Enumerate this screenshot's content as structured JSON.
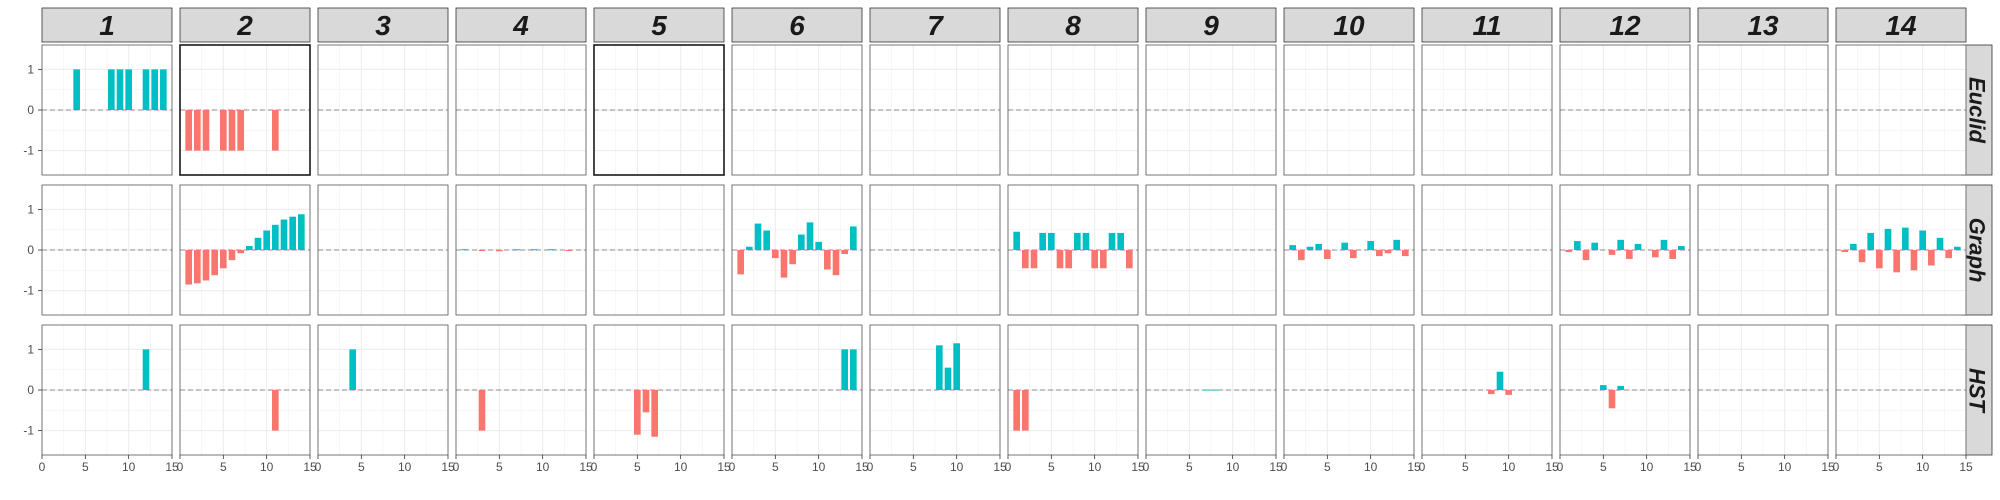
{
  "chart_data": {
    "type": "bar",
    "layout": "facet-grid",
    "columns": [
      "1",
      "2",
      "3",
      "4",
      "5",
      "6",
      "7",
      "8",
      "9",
      "10",
      "11",
      "12",
      "13",
      "14"
    ],
    "rows": [
      "Euclid",
      "Graph",
      "HST"
    ],
    "x_ticks": [
      "0",
      "5",
      "10",
      "15"
    ],
    "y_ticks": [
      "1",
      "0",
      "-1"
    ],
    "xlim": [
      0,
      15
    ],
    "ylim": [
      -1.6,
      1.6
    ],
    "grid": true,
    "zero_line": "dashed",
    "colors": {
      "positive": "#00BFC4",
      "negative": "#F8766D"
    },
    "highlighted_panels": [
      {
        "row": "Euclid",
        "col": "2"
      },
      {
        "row": "Euclid",
        "col": "5"
      }
    ],
    "panels": {
      "Euclid": {
        "1": [
          [
            4,
            1
          ],
          [
            8,
            1
          ],
          [
            9,
            1
          ],
          [
            10,
            1
          ],
          [
            12,
            1
          ],
          [
            13,
            1
          ],
          [
            14,
            1
          ]
        ],
        "2": [
          [
            1,
            -1
          ],
          [
            2,
            -1
          ],
          [
            3,
            -1
          ],
          [
            5,
            -1
          ],
          [
            6,
            -1
          ],
          [
            7,
            -1
          ],
          [
            11,
            -1
          ]
        ],
        "3": [],
        "4": [],
        "5": [],
        "6": [],
        "7": [],
        "8": [],
        "9": [],
        "10": [],
        "11": [],
        "12": [],
        "13": [],
        "14": []
      },
      "Graph": {
        "1": [],
        "2": [
          [
            1,
            -0.85
          ],
          [
            2,
            -0.82
          ],
          [
            3,
            -0.75
          ],
          [
            4,
            -0.62
          ],
          [
            5,
            -0.45
          ],
          [
            6,
            -0.25
          ],
          [
            7,
            -0.08
          ],
          [
            8,
            0.1
          ],
          [
            9,
            0.3
          ],
          [
            10,
            0.48
          ],
          [
            11,
            0.62
          ],
          [
            12,
            0.75
          ],
          [
            13,
            0.82
          ],
          [
            14,
            0.88
          ]
        ],
        "3": [],
        "4": [
          [
            1,
            0.02
          ],
          [
            3,
            -0.02
          ],
          [
            5,
            -0.03
          ],
          [
            7,
            0.02
          ],
          [
            9,
            0.02
          ],
          [
            11,
            0.02
          ],
          [
            13,
            -0.02
          ]
        ],
        "5": [],
        "6": [
          [
            1,
            -0.6
          ],
          [
            2,
            0.08
          ],
          [
            3,
            0.65
          ],
          [
            4,
            0.48
          ],
          [
            5,
            -0.2
          ],
          [
            6,
            -0.68
          ],
          [
            7,
            -0.35
          ],
          [
            8,
            0.38
          ],
          [
            9,
            0.68
          ],
          [
            10,
            0.2
          ],
          [
            11,
            -0.48
          ],
          [
            12,
            -0.62
          ],
          [
            13,
            -0.1
          ],
          [
            14,
            0.58
          ]
        ],
        "7": [],
        "8": [
          [
            1,
            0.45
          ],
          [
            2,
            -0.45
          ],
          [
            3,
            -0.45
          ],
          [
            4,
            0.42
          ],
          [
            5,
            0.42
          ],
          [
            6,
            -0.45
          ],
          [
            7,
            -0.45
          ],
          [
            8,
            0.42
          ],
          [
            9,
            0.42
          ],
          [
            10,
            -0.45
          ],
          [
            11,
            -0.45
          ],
          [
            12,
            0.42
          ],
          [
            13,
            0.42
          ],
          [
            14,
            -0.45
          ]
        ],
        "9": [],
        "10": [
          [
            1,
            0.12
          ],
          [
            2,
            -0.25
          ],
          [
            3,
            0.08
          ],
          [
            4,
            0.15
          ],
          [
            5,
            -0.22
          ],
          [
            7,
            0.18
          ],
          [
            8,
            -0.2
          ],
          [
            10,
            0.22
          ],
          [
            11,
            -0.15
          ],
          [
            12,
            -0.08
          ],
          [
            13,
            0.25
          ],
          [
            14,
            -0.15
          ]
        ],
        "11": [],
        "12": [
          [
            1,
            -0.05
          ],
          [
            2,
            0.22
          ],
          [
            3,
            -0.25
          ],
          [
            4,
            0.18
          ],
          [
            6,
            -0.12
          ],
          [
            7,
            0.25
          ],
          [
            8,
            -0.22
          ],
          [
            9,
            0.15
          ],
          [
            11,
            -0.18
          ],
          [
            12,
            0.25
          ],
          [
            13,
            -0.22
          ],
          [
            14,
            0.1
          ]
        ],
        "13": [],
        "14": [
          [
            1,
            -0.05
          ],
          [
            2,
            0.15
          ],
          [
            3,
            -0.3
          ],
          [
            4,
            0.42
          ],
          [
            5,
            -0.45
          ],
          [
            6,
            0.52
          ],
          [
            7,
            -0.55
          ],
          [
            8,
            0.55
          ],
          [
            9,
            -0.5
          ],
          [
            10,
            0.48
          ],
          [
            11,
            -0.38
          ],
          [
            12,
            0.3
          ],
          [
            13,
            -0.2
          ],
          [
            14,
            0.08
          ]
        ]
      },
      "HST": {
        "1": [
          [
            12,
            1
          ]
        ],
        "2": [
          [
            11,
            -1
          ]
        ],
        "3": [
          [
            4,
            1
          ]
        ],
        "4": [
          [
            3,
            -1
          ]
        ],
        "5": [
          [
            5,
            -1.1
          ],
          [
            6,
            -0.55
          ],
          [
            7,
            -1.15
          ]
        ],
        "6": [
          [
            13,
            1
          ],
          [
            14,
            1
          ]
        ],
        "7": [
          [
            8,
            1.1
          ],
          [
            9,
            0.55
          ],
          [
            10,
            1.15
          ]
        ],
        "8": [
          [
            1,
            -1
          ],
          [
            2,
            -1
          ]
        ],
        "9": [
          [
            7,
            0.01
          ],
          [
            8,
            0.01
          ]
        ],
        "10": [],
        "11": [
          [
            8,
            -0.1
          ],
          [
            9,
            0.45
          ],
          [
            10,
            -0.12
          ]
        ],
        "12": [
          [
            5,
            0.12
          ],
          [
            6,
            -0.45
          ],
          [
            7,
            0.1
          ]
        ],
        "13": [],
        "14": []
      }
    }
  }
}
